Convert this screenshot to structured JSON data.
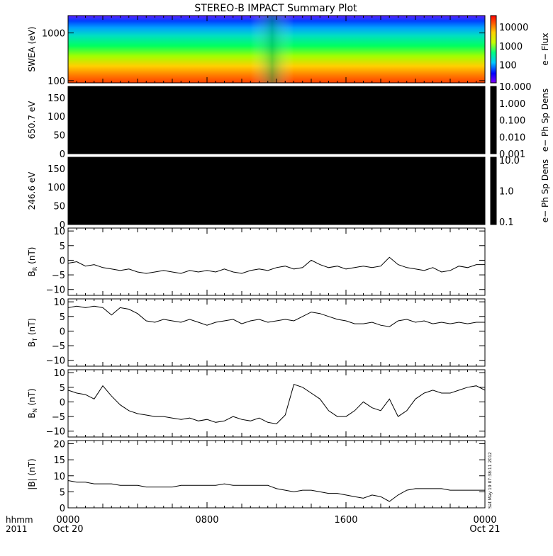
{
  "title": "STEREO-B IMPACT Summary Plot",
  "stamp": "Sat May 19 07:38:11 2012",
  "time_axis": {
    "row_label": "hhmm",
    "year": "2011",
    "ticks": [
      {
        "hour": 0,
        "label": "0000",
        "date": "Oct 20"
      },
      {
        "hour": 8,
        "label": "0800",
        "date": ""
      },
      {
        "hour": 16,
        "label": "1600",
        "date": ""
      },
      {
        "hour": 24,
        "label": "0000",
        "date": "Oct 21"
      }
    ]
  },
  "chart_data": [
    {
      "id": "swea",
      "type": "heatmap",
      "ylabel": "SWEA (eV)",
      "yscale": "log",
      "ylim": [
        90,
        2300
      ],
      "yticks": [
        100,
        1000
      ],
      "ytick_labels": [
        "100",
        "1000"
      ],
      "colorbar": {
        "label": "e− Flux",
        "scale": "log",
        "ticks": [
          "100",
          "1000",
          "10000"
        ],
        "colors": [
          "#8000ff",
          "#0000ff",
          "#00c8ff",
          "#00ff80",
          "#c8ff00",
          "#ffd000",
          "#ff6000",
          "#ff0000"
        ]
      }
    },
    {
      "id": "pad650",
      "type": "heatmap",
      "ylabel": "650.7 eV",
      "ylim": [
        0,
        180
      ],
      "yticks": [
        0,
        50,
        100,
        150
      ],
      "ytick_labels": [
        "0",
        "50",
        "100",
        "150"
      ],
      "fill": "#000000",
      "colorbar": {
        "label": "e− Ph Sp Dens",
        "scale": "log",
        "ticks": [
          "0.001",
          "0.010",
          "0.100",
          "1.000",
          "10.000"
        ]
      }
    },
    {
      "id": "pad246",
      "type": "heatmap",
      "ylabel": "246.6 eV",
      "ylim": [
        0,
        180
      ],
      "yticks": [
        0,
        50,
        100,
        150
      ],
      "ytick_labels": [
        "0",
        "50",
        "100",
        "150"
      ],
      "fill": "#000000",
      "colorbar": {
        "label": "e− Ph Sp Dens",
        "scale": "log",
        "ticks": [
          "0.1",
          "1.0",
          "10.0"
        ]
      }
    },
    {
      "id": "br",
      "type": "line",
      "ylabel_main": "B",
      "ylabel_sub": "R",
      "ylabel_unit": " (nT)",
      "ylim": [
        -12,
        11
      ],
      "yticks": [
        -10,
        -5,
        0,
        5,
        10
      ],
      "ytick_labels": [
        "−10",
        "−5",
        "0",
        "5",
        "10"
      ],
      "x": [
        0,
        0.5,
        1,
        1.5,
        2,
        2.5,
        3,
        3.5,
        4,
        4.5,
        5,
        5.5,
        6,
        6.5,
        7,
        7.5,
        8,
        8.5,
        9,
        9.5,
        10,
        10.5,
        11,
        11.5,
        12,
        12.5,
        13,
        13.5,
        14,
        14.5,
        15,
        15.5,
        16,
        16.5,
        17,
        17.5,
        18,
        18.5,
        19,
        19.5,
        20,
        20.5,
        21,
        21.5,
        22,
        22.5,
        23,
        23.5,
        24
      ],
      "y": [
        -1,
        -0.5,
        -2,
        -1.5,
        -2.5,
        -3,
        -3.5,
        -3,
        -4,
        -4.5,
        -4,
        -3.5,
        -4,
        -4.5,
        -3.5,
        -4,
        -3.5,
        -4,
        -3,
        -4,
        -4.5,
        -3.5,
        -3,
        -3.5,
        -2.5,
        -2,
        -3,
        -2.5,
        0,
        -1.5,
        -2.5,
        -2,
        -3,
        -2.5,
        -2,
        -2.5,
        -2,
        1,
        -1.5,
        -2.5,
        -3,
        -3.5,
        -2.5,
        -4,
        -3.5,
        -2,
        -2.5,
        -1.5,
        -1.5
      ]
    },
    {
      "id": "bt",
      "type": "line",
      "ylabel_main": "B",
      "ylabel_sub": "T",
      "ylabel_unit": " (nT)",
      "ylim": [
        -12,
        11
      ],
      "yticks": [
        -10,
        -5,
        0,
        5,
        10
      ],
      "ytick_labels": [
        "−10",
        "−5",
        "0",
        "5",
        "10"
      ],
      "x": [
        0,
        0.5,
        1,
        1.5,
        2,
        2.5,
        3,
        3.5,
        4,
        4.5,
        5,
        5.5,
        6,
        6.5,
        7,
        7.5,
        8,
        8.5,
        9,
        9.5,
        10,
        10.5,
        11,
        11.5,
        12,
        12.5,
        13,
        13.5,
        14,
        14.5,
        15,
        15.5,
        16,
        16.5,
        17,
        17.5,
        18,
        18.5,
        19,
        19.5,
        20,
        20.5,
        21,
        21.5,
        22,
        22.5,
        23,
        23.5,
        24
      ],
      "y": [
        8,
        8.5,
        8,
        8.5,
        8,
        5.5,
        8,
        7.5,
        6,
        3.5,
        3,
        4,
        3.5,
        3,
        4,
        3,
        2,
        3,
        3.5,
        4,
        2.5,
        3.5,
        4,
        3,
        3.5,
        4,
        3.5,
        5,
        6.5,
        6,
        5,
        4,
        3.5,
        2.5,
        2.5,
        3,
        2,
        1.5,
        3.5,
        4,
        3,
        3.5,
        2.5,
        3,
        2.5,
        3,
        2.5,
        3,
        3
      ]
    },
    {
      "id": "bn",
      "type": "line",
      "ylabel_main": "B",
      "ylabel_sub": "N",
      "ylabel_unit": " (nT)",
      "ylim": [
        -12,
        11
      ],
      "yticks": [
        -10,
        -5,
        0,
        5,
        10
      ],
      "ytick_labels": [
        "−10",
        "−5",
        "0",
        "5",
        "10"
      ],
      "x": [
        0,
        0.5,
        1,
        1.5,
        2,
        2.5,
        3,
        3.5,
        4,
        4.5,
        5,
        5.5,
        6,
        6.5,
        7,
        7.5,
        8,
        8.5,
        9,
        9.5,
        10,
        10.5,
        11,
        11.5,
        12,
        12.5,
        13,
        13.5,
        14,
        14.5,
        15,
        15.5,
        16,
        16.5,
        17,
        17.5,
        18,
        18.5,
        19,
        19.5,
        20,
        20.5,
        21,
        21.5,
        22,
        22.5,
        23,
        23.5,
        24
      ],
      "y": [
        4,
        3,
        2.5,
        1,
        5.5,
        2,
        -1,
        -3,
        -4,
        -4.5,
        -5,
        -5,
        -5.5,
        -6,
        -5.5,
        -6.5,
        -6,
        -7,
        -6.5,
        -5,
        -6,
        -6.5,
        -5.5,
        -7,
        -7.5,
        -4.5,
        6,
        5,
        3,
        1,
        -3,
        -5,
        -5,
        -3,
        0,
        -2,
        -3,
        1,
        -5,
        -3,
        1,
        3,
        4,
        3,
        3,
        4,
        5,
        5.5,
        4
      ]
    },
    {
      "id": "bmag",
      "type": "line",
      "ylabel": "|B| (nT)",
      "ylim": [
        0,
        21
      ],
      "yticks": [
        0,
        5,
        10,
        15,
        20
      ],
      "ytick_labels": [
        "0",
        "5",
        "10",
        "15",
        "20"
      ],
      "x": [
        0,
        0.5,
        1,
        1.5,
        2,
        2.5,
        3,
        3.5,
        4,
        4.5,
        5,
        5.5,
        6,
        6.5,
        7,
        7.5,
        8,
        8.5,
        9,
        9.5,
        10,
        10.5,
        11,
        11.5,
        12,
        12.5,
        13,
        13.5,
        14,
        14.5,
        15,
        15.5,
        16,
        16.5,
        17,
        17.5,
        18,
        18.5,
        19,
        19.5,
        20,
        20.5,
        21,
        21.5,
        22,
        22.5,
        23,
        23.5,
        24
      ],
      "y": [
        8.5,
        8,
        8,
        7.5,
        7.5,
        7.5,
        7,
        7,
        7,
        6.5,
        6.5,
        6.5,
        6.5,
        7,
        7,
        7,
        7,
        7,
        7.5,
        7,
        7,
        7,
        7,
        7,
        6,
        5.5,
        5,
        5.5,
        5.5,
        5,
        4.5,
        4.5,
        4,
        3.5,
        3,
        4,
        3.5,
        2,
        4,
        5.5,
        6,
        6,
        6,
        6,
        5.5,
        5.5,
        5.5,
        5.5,
        5.5
      ]
    }
  ]
}
